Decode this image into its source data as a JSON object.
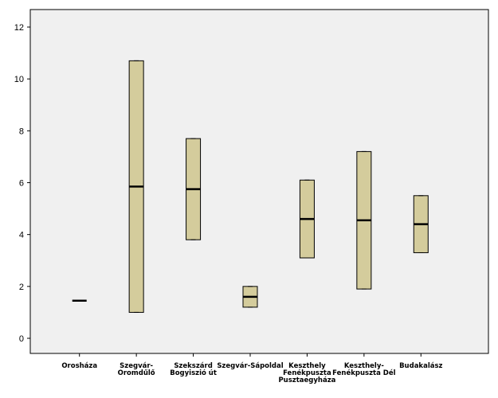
{
  "chart_data": {
    "type": "boxplot",
    "title": "",
    "xlabel": "",
    "ylabel": "",
    "ylim": [
      -0.5,
      12.6
    ],
    "yticks": [
      0,
      2,
      4,
      6,
      8,
      10,
      12
    ],
    "grid": false,
    "legend": "none",
    "colors": {
      "plot_bg": "#f0f0f0",
      "box_fill": "#d4cc9c",
      "stroke": "#000000"
    },
    "categories": [
      {
        "label_lines": [
          "Orosháza"
        ],
        "min": 1.45,
        "q1": 1.45,
        "median": 1.45,
        "q3": 1.45,
        "max": 1.45
      },
      {
        "label_lines": [
          "Szegvár-",
          "Oromdűlő"
        ],
        "min": 1.0,
        "q1": 1.0,
        "median": 5.85,
        "q3": 10.7,
        "max": 10.7
      },
      {
        "label_lines": [
          "Szekszárd",
          "Bogyiszió út"
        ],
        "min": 3.8,
        "q1": 3.8,
        "median": 5.75,
        "q3": 7.7,
        "max": 7.7
      },
      {
        "label_lines": [
          "Szegvár-Sápoldal"
        ],
        "min": 1.2,
        "q1": 1.2,
        "median": 1.6,
        "q3": 2.0,
        "max": 2.0
      },
      {
        "label_lines": [
          "Keszthely",
          "Fenékpuszta",
          "Pusztaegyháza"
        ],
        "min": 3.1,
        "q1": 3.1,
        "median": 4.6,
        "q3": 6.1,
        "max": 6.1
      },
      {
        "label_lines": [
          "Keszthely-",
          "Fenékpuszta Dél"
        ],
        "min": 1.9,
        "q1": 1.9,
        "median": 4.55,
        "q3": 7.2,
        "max": 7.2
      },
      {
        "label_lines": [
          "Budakalász"
        ],
        "min": 3.3,
        "q1": 3.3,
        "median": 4.4,
        "q3": 5.5,
        "max": 5.5
      }
    ]
  }
}
